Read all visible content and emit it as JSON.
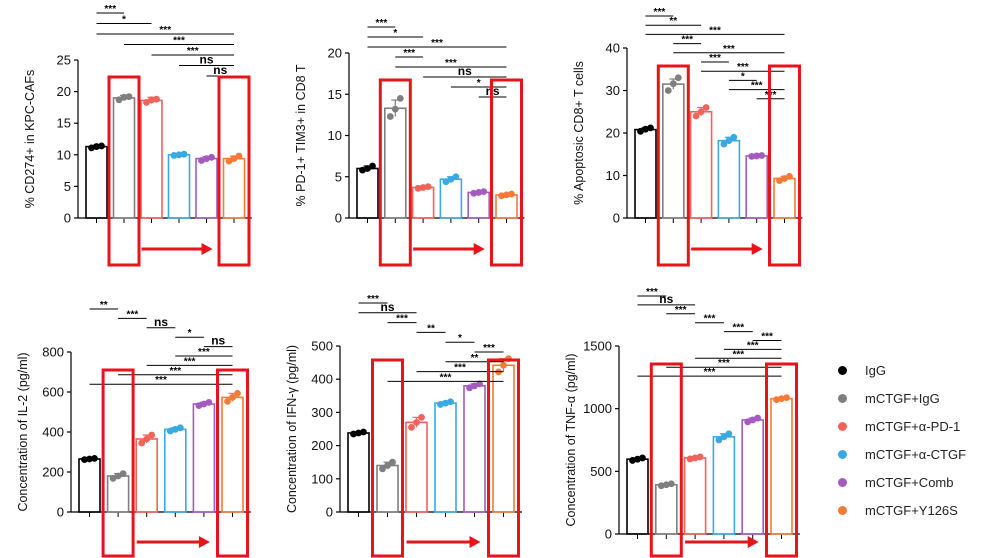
{
  "legend": [
    {
      "label": "IgG",
      "color": "#000000"
    },
    {
      "label": "mCTGF+IgG",
      "color": "#7f7f7f"
    },
    {
      "label": "mCTGF+α-PD-1",
      "color": "#f0625a"
    },
    {
      "label": "mCTGF+α-CTGF",
      "color": "#39a9e1"
    },
    {
      "label": "mCTGF+Comb",
      "color": "#a45ac0"
    },
    {
      "label": "mCTGF+Y126S",
      "color": "#f47a35"
    }
  ],
  "highlight_color": "#e8141b",
  "chart_data": [
    {
      "type": "bar",
      "ylabel": "% CD274+ in KPC-CAFs",
      "ylim": [
        0,
        25
      ],
      "yticks": [
        0,
        5,
        10,
        15,
        20,
        25
      ],
      "values": [
        11.3,
        19.0,
        18.6,
        10.0,
        9.4,
        9.4
      ],
      "errors": [
        0.2,
        0.4,
        0.5,
        0.1,
        0.3,
        0.4
      ],
      "points": [
        [
          11.1,
          11.3,
          11.4
        ],
        [
          18.7,
          19.1,
          19.2
        ],
        [
          18.3,
          18.7,
          18.8
        ],
        [
          9.9,
          10.0,
          10.1
        ],
        [
          9.1,
          9.4,
          9.6
        ],
        [
          9.0,
          9.4,
          9.8
        ]
      ],
      "significance": [
        {
          "from": 0,
          "to": 1,
          "label": "***"
        },
        {
          "from": 0,
          "to": 2,
          "label": "*"
        },
        {
          "from": 0,
          "to": 5,
          "label": "***"
        },
        {
          "from": 1,
          "to": 5,
          "label": "***"
        },
        {
          "from": 2,
          "to": 5,
          "label": "***"
        },
        {
          "from": 3,
          "to": 5,
          "label": "ns"
        },
        {
          "from": 4,
          "to": 5,
          "label": "ns"
        }
      ],
      "highlight_bars": [
        1,
        5
      ]
    },
    {
      "type": "bar",
      "ylabel": "% PD-1+ TIM3+ in CD8 T",
      "ylim": [
        0,
        20
      ],
      "yticks": [
        0,
        5,
        10,
        15,
        20
      ],
      "values": [
        6.0,
        13.3,
        3.7,
        4.7,
        3.1,
        2.8
      ],
      "errors": [
        0.3,
        1.0,
        0.1,
        0.3,
        0.1,
        0.1
      ],
      "points": [
        [
          5.8,
          6.0,
          6.3
        ],
        [
          12.3,
          13.2,
          14.5
        ],
        [
          3.6,
          3.7,
          3.8
        ],
        [
          4.4,
          4.7,
          5.0
        ],
        [
          3.0,
          3.1,
          3.2
        ],
        [
          2.7,
          2.8,
          2.9
        ]
      ],
      "significance": [
        {
          "from": 0,
          "to": 1,
          "label": "***"
        },
        {
          "from": 0,
          "to": 2,
          "label": "*"
        },
        {
          "from": 0,
          "to": 5,
          "label": "***"
        },
        {
          "from": 1,
          "to": 2,
          "label": "***"
        },
        {
          "from": 1,
          "to": 5,
          "label": "***"
        },
        {
          "from": 2,
          "to": 5,
          "label": "ns"
        },
        {
          "from": 3,
          "to": 5,
          "label": "*"
        },
        {
          "from": 4,
          "to": 5,
          "label": "ns"
        }
      ],
      "highlight_bars": [
        1,
        5
      ]
    },
    {
      "type": "bar",
      "ylabel": "% Apoptosic CD8+ T cells",
      "ylim": [
        0,
        40
      ],
      "yticks": [
        0,
        10,
        20,
        30,
        40
      ],
      "values": [
        20.8,
        31.5,
        25.0,
        18.2,
        14.6,
        9.3
      ],
      "errors": [
        0.4,
        1.2,
        1.0,
        0.8,
        0.1,
        0.5
      ],
      "points": [
        [
          20.4,
          20.9,
          21.2
        ],
        [
          30.0,
          31.6,
          33.0
        ],
        [
          24.0,
          25.0,
          26.0
        ],
        [
          17.4,
          18.2,
          19.0
        ],
        [
          14.5,
          14.6,
          14.7
        ],
        [
          8.8,
          9.3,
          9.8
        ]
      ],
      "significance": [
        {
          "from": 0,
          "to": 1,
          "label": "***"
        },
        {
          "from": 0,
          "to": 2,
          "label": "**"
        },
        {
          "from": 0,
          "to": 5,
          "label": "***"
        },
        {
          "from": 1,
          "to": 2,
          "label": "***"
        },
        {
          "from": 1,
          "to": 5,
          "label": "***"
        },
        {
          "from": 2,
          "to": 3,
          "label": "***"
        },
        {
          "from": 2,
          "to": 5,
          "label": "***"
        },
        {
          "from": 3,
          "to": 4,
          "label": "*"
        },
        {
          "from": 3,
          "to": 5,
          "label": "***"
        },
        {
          "from": 4,
          "to": 5,
          "label": "***"
        }
      ],
      "highlight_bars": [
        1,
        5
      ]
    },
    {
      "type": "bar",
      "ylabel": "Concentration of IL-2 (pg/ml)",
      "ylim": [
        0,
        800
      ],
      "yticks": [
        0,
        200,
        400,
        600,
        800
      ],
      "values": [
        265,
        180,
        365,
        413,
        540,
        573
      ],
      "errors": [
        4,
        12,
        20,
        8,
        8,
        20
      ],
      "points": [
        [
          262,
          265,
          268
        ],
        [
          168,
          180,
          192
        ],
        [
          345,
          365,
          385
        ],
        [
          405,
          413,
          421
        ],
        [
          532,
          540,
          548
        ],
        [
          553,
          573,
          593
        ]
      ],
      "significance": [
        {
          "from": 0,
          "to": 1,
          "label": "**"
        },
        {
          "from": 1,
          "to": 2,
          "label": "***"
        },
        {
          "from": 2,
          "to": 3,
          "label": "ns"
        },
        {
          "from": 3,
          "to": 4,
          "label": "*"
        },
        {
          "from": 4,
          "to": 5,
          "label": "ns"
        },
        {
          "from": 3,
          "to": 5,
          "label": "***"
        },
        {
          "from": 2,
          "to": 5,
          "label": "***"
        },
        {
          "from": 1,
          "to": 5,
          "label": "***"
        },
        {
          "from": 0,
          "to": 5,
          "label": "***"
        }
      ],
      "highlight_bars": [
        1,
        5
      ]
    },
    {
      "type": "bar",
      "ylabel": "Concentration of IFN-γ (pg/ml)",
      "ylim": [
        0,
        500
      ],
      "yticks": [
        0,
        100,
        200,
        300,
        400,
        500
      ],
      "values": [
        238,
        140,
        270,
        328,
        380,
        442
      ],
      "errors": [
        3,
        10,
        15,
        4,
        6,
        20
      ],
      "points": [
        [
          235,
          238,
          241
        ],
        [
          130,
          140,
          150
        ],
        [
          255,
          270,
          285
        ],
        [
          324,
          328,
          332
        ],
        [
          374,
          380,
          386
        ],
        [
          422,
          442,
          462
        ]
      ],
      "significance": [
        {
          "from": 0,
          "to": 1,
          "label": "***"
        },
        {
          "from": 0,
          "to": 2,
          "label": "ns"
        },
        {
          "from": 1,
          "to": 2,
          "label": "***"
        },
        {
          "from": 2,
          "to": 3,
          "label": "**"
        },
        {
          "from": 3,
          "to": 4,
          "label": "*"
        },
        {
          "from": 4,
          "to": 5,
          "label": "***"
        },
        {
          "from": 3,
          "to": 5,
          "label": "**"
        },
        {
          "from": 2,
          "to": 5,
          "label": "***"
        },
        {
          "from": 1,
          "to": 5,
          "label": "***"
        }
      ],
      "highlight_bars": [
        1,
        5
      ]
    },
    {
      "type": "bar",
      "ylabel": "Concentration of TNF-α (pg/ml)",
      "ylim": [
        0,
        1500
      ],
      "yticks": [
        0,
        500,
        1000,
        1500
      ],
      "values": [
        597,
        393,
        607,
        775,
        910,
        1080
      ],
      "errors": [
        10,
        8,
        8,
        25,
        15,
        8
      ],
      "points": [
        [
          587,
          597,
          607
        ],
        [
          385,
          393,
          401
        ],
        [
          599,
          607,
          615
        ],
        [
          750,
          775,
          800
        ],
        [
          895,
          910,
          925
        ],
        [
          1072,
          1080,
          1088
        ]
      ],
      "significance": [
        {
          "from": 0,
          "to": 1,
          "label": "***"
        },
        {
          "from": 0,
          "to": 2,
          "label": "ns"
        },
        {
          "from": 1,
          "to": 2,
          "label": "***"
        },
        {
          "from": 2,
          "to": 3,
          "label": "***"
        },
        {
          "from": 3,
          "to": 4,
          "label": "***"
        },
        {
          "from": 4,
          "to": 5,
          "label": "***"
        },
        {
          "from": 3,
          "to": 5,
          "label": "***"
        },
        {
          "from": 2,
          "to": 5,
          "label": "***"
        },
        {
          "from": 1,
          "to": 5,
          "label": "***"
        },
        {
          "from": 0,
          "to": 5,
          "label": "***"
        }
      ],
      "highlight_bars": [
        1,
        5
      ]
    }
  ]
}
